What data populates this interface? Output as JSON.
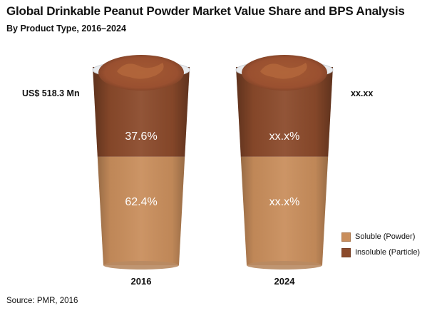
{
  "title": "Global Drinkable Peanut Powder Market Value Share and BPS Analysis",
  "subtitle": "By Product Type, 2016–2024",
  "source": "Source: PMR, 2016",
  "market_values": [
    "US$ 518.3 Mn",
    "xx.xx"
  ],
  "colors": {
    "soluble": "#c98e5c",
    "insoluble": "#8b4a2b"
  },
  "chart_data": {
    "type": "bar",
    "title": "Global Drinkable Peanut Powder Market Value Share and BPS Analysis",
    "subtitle": "By Product Type, 2016–2024",
    "categories": [
      "2016",
      "2024"
    ],
    "series": [
      {
        "name": "Soluble (Powder)",
        "values": [
          62.4,
          null
        ],
        "labels": [
          "62.4%",
          "xx.x%"
        ]
      },
      {
        "name": "Insoluble (Particle)",
        "values": [
          37.6,
          null
        ],
        "labels": [
          "37.6%",
          "xx.x%"
        ]
      }
    ],
    "legend": [
      "Soluble (Powder)",
      "Insoluble (Particle)"
    ],
    "legend_position": "bottom-right",
    "ylim": [
      0,
      100
    ]
  }
}
